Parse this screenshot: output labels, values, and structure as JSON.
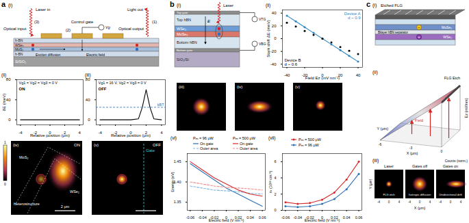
{
  "panels": {
    "a": {
      "label": "a",
      "i": {
        "tag": "(i)",
        "laser_in": "Laser in",
        "light_out": "Light out",
        "optical_input": "Optical input",
        "control_gate": "Control gate",
        "optical_output": "Optical output",
        "exciton_diffusion": "Exciton diffusion",
        "electric_field": "Electric field",
        "gate_voltage": "Vg",
        "steps": [
          "(3)",
          "(2)",
          "(1)"
        ],
        "layers": [
          "h-BN",
          "WSe₂",
          "MoS₂",
          "h-BN",
          "Si/SiO₂"
        ]
      },
      "iv": {
        "tag": "(iv)",
        "state": "ON",
        "regions": [
          "MoS₂",
          "Heterostructure",
          "WSe₂"
        ],
        "scale_bar": "2 μm",
        "colorbar_ticks": [
          0,
          1
        ]
      },
      "v": {
        "tag": "(v)",
        "state": "OFF",
        "gate": "Gate"
      }
    },
    "b": {
      "label": "b",
      "i": {
        "tag": "(i)",
        "laser": "Laser",
        "layers": [
          "Top gate",
          "Top hBN",
          "WSe₂",
          "MoSe₂",
          "Bottom hBN",
          "Bottom gate",
          "SiO₂/Si"
        ],
        "top_voltage": "VTG",
        "bottom_voltage": "VBG",
        "field": "E"
      },
      "images": [
        {
          "tag": "(iii)"
        },
        {
          "tag": "(iv)"
        },
        {
          "tag": "(v)"
        }
      ]
    },
    "c": {
      "label": "c",
      "i": {
        "tag": "(i)",
        "top": "Etched FLG",
        "upper": "MoSe₂",
        "separator": "Bilayer hBN separator",
        "lower": "WSe₂",
        "charges": [
          "−",
          "+"
        ]
      },
      "ii": {
        "tag": "(ii)",
        "etch": "FLG Etch",
        "x_label": "X (μm)",
        "y_label": "Y (μm)",
        "z_label": "Ez (mV/nm)",
        "arrow": "Field",
        "x_ticks": [
          -6,
          -3,
          0
        ]
      },
      "iii": {
        "tag": "(iii)",
        "colorbar": "Counts (norm.)",
        "images": [
          {
            "title": "Laser",
            "note": "FLG etch"
          },
          {
            "title": "Gates off",
            "note": "Isotropic diffusion"
          },
          {
            "title": "Gates on",
            "note": "Unidirectional drift"
          }
        ],
        "x_label": "X (μm)",
        "y_label": "Y (μm)",
        "x_ticks": [
          -4,
          0,
          4
        ]
      }
    }
  },
  "chart_data": [
    {
      "type": "line",
      "title": "(ii)",
      "annotations": [
        "ON",
        "Vg1 = Vg2 = Vg3 = 0 V"
      ],
      "x": [
        -4,
        -3,
        -2,
        -1,
        0,
        1,
        2,
        3,
        4
      ],
      "values": [
        0,
        0,
        0,
        0,
        0,
        0,
        0,
        0,
        0
      ],
      "color": "#000000",
      "xlabel": "Relative position (μm)",
      "ylabel": "δE (meV)",
      "xlim": [
        -4.5,
        4.5
      ],
      "xticks": [
        -4,
        -2,
        0,
        2,
        4
      ],
      "ylim": [
        -10,
        80
      ],
      "yticks": [
        0,
        40,
        80
      ]
    },
    {
      "type": "line",
      "title": "(iii)",
      "annotations": [
        "OFF",
        "Vg1 = 16 V, Vg2 = Vg3 = 0 V"
      ],
      "x": [
        -4,
        -3,
        -2,
        -1,
        0,
        1,
        1.5,
        2,
        2.5,
        3,
        4
      ],
      "values": [
        0,
        0,
        0,
        0,
        0,
        2,
        25,
        60,
        25,
        2,
        0
      ],
      "color": "#000000",
      "reference_line": {
        "value": 25,
        "label": "kBT"
      },
      "xlabel": "Relative position (μm)",
      "xlim": [
        -4.5,
        4.5
      ],
      "xticks": [
        -4,
        -2,
        0,
        2,
        4
      ],
      "ylim": [
        -10,
        80
      ],
      "yticks": [
        0,
        40,
        80
      ]
    },
    {
      "type": "line",
      "title": "(ii)",
      "x": [
        -40,
        -30,
        -20,
        -10,
        0,
        10,
        20,
        30,
        40
      ],
      "series": [
        {
          "name": "Device A",
          "annotation": "d ~ 0.9",
          "color": "#2e86c1",
          "marker": "circle",
          "values": [
            36,
            27,
            18,
            9,
            0,
            -9,
            -18,
            -27,
            -36
          ]
        },
        {
          "name": "Device B",
          "annotation": "d ~ 0.6",
          "color": "#000000",
          "type": "scatter",
          "marker": "circle",
          "values": [
            25,
            19,
            12,
            6,
            0,
            -6,
            -13,
            -19,
            -24
          ]
        }
      ],
      "xlabel": "Field Ez (mV nm⁻¹)",
      "ylabel": "Stark shift ΔE (meV)",
      "xlim": [
        -45,
        45
      ],
      "xticks": [
        -40,
        -20,
        0,
        20,
        40
      ],
      "ylim": [
        -45,
        45
      ],
      "yticks": [
        -40,
        -20,
        0,
        20,
        40
      ]
    },
    {
      "type": "line",
      "title": "(vi)",
      "legend_titles": [
        "Pₑₓ = 96 μW",
        "Pₑₓ = 500 μW"
      ],
      "x": [
        -0.06,
        -0.04,
        -0.02,
        0,
        0.02,
        0.04,
        0.06
      ],
      "series": [
        {
          "name": "On gate",
          "color": "#2a6fb8",
          "line_style": "solid",
          "values": [
            1.445,
            1.425,
            1.405,
            1.385,
            1.37,
            1.355,
            1.34
          ]
        },
        {
          "name": "Outer area",
          "color": "#7fb3dd",
          "line_style": "dashed",
          "values": [
            1.39,
            1.385,
            1.38,
            1.378,
            1.376,
            1.372,
            1.37
          ]
        },
        {
          "name": "On gate",
          "color": "#d62728",
          "line_style": "solid",
          "values": [
            1.45,
            1.43,
            1.41,
            1.395,
            1.38,
            1.37,
            1.365
          ]
        },
        {
          "name": "Outer area",
          "color": "#f08a8a",
          "line_style": "dashed",
          "values": [
            1.4,
            1.395,
            1.39,
            1.387,
            1.385,
            1.383,
            1.38
          ]
        }
      ],
      "xlabel": "Electric field (V nm⁻¹)",
      "ylabel": "Energy (eV)",
      "xlim": [
        -0.065,
        0.065
      ],
      "xticks": [
        -0.06,
        -0.04,
        -0.02,
        0,
        0.02,
        0.04,
        0.06
      ],
      "ylim": [
        1.33,
        1.47
      ],
      "yticks": [
        1.35,
        {
          "value": 1.4,
          "label": "1.40"
        },
        1.45
      ]
    },
    {
      "type": "line",
      "title": "(vii)",
      "x": [
        -0.06,
        -0.04,
        -0.02,
        0,
        0.02,
        0.04,
        0.06
      ],
      "series": [
        {
          "name": "Pₑₓ = 500 μW",
          "color": "#d62728",
          "marker": "circle",
          "values": [
            1.0,
            0.8,
            0.9,
            1.3,
            2.2,
            3.8,
            6.0
          ]
        },
        {
          "name": "Pₑₓ = 96 μW",
          "color": "#2a6fb8",
          "marker": "circle",
          "values": [
            0.5,
            0.4,
            0.5,
            0.8,
            1.4,
            2.6,
            4.5
          ]
        }
      ],
      "xlabel": "Electric field (V nm⁻¹)",
      "ylabel": "nₓ (10¹¹ cm⁻²)",
      "xlim": [
        -0.065,
        0.065
      ],
      "xticks": [
        -0.06,
        -0.04,
        -0.02,
        0,
        0.02,
        0.04,
        0.06
      ],
      "ylim": [
        0,
        7
      ],
      "yticks": [
        0,
        2,
        4,
        6
      ]
    }
  ]
}
